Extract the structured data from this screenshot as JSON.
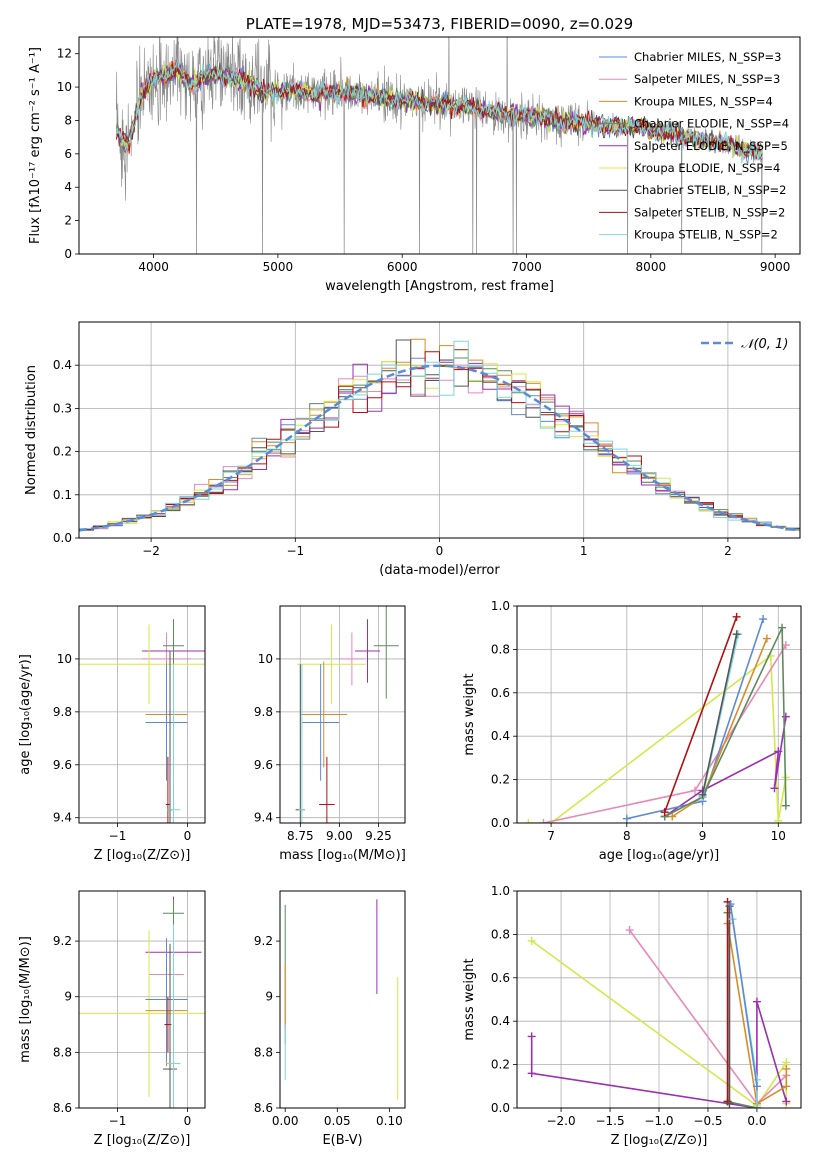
{
  "colors": {
    "chabrier_miles": "#5b8bd8",
    "salpeter_miles": "#e889b8",
    "kroupa_miles": "#d98c2a",
    "chabrier_elodie": "#5e8a5e",
    "salpeter_elodie": "#9b30b0",
    "kroupa_elodie": "#d4e84a",
    "chabrier_stelib": "#555555",
    "salpeter_stelib": "#b01010",
    "kroupa_stelib": "#7fd6dc",
    "grid": "#b0b0b0",
    "normal_curve": "#5b8bd8"
  },
  "chart_data": [
    {
      "id": "spectrum",
      "type": "line",
      "title": "PLATE=1978, MJD=53473, FIBERID=0090, z=0.029",
      "xlabel": "wavelength [Angstrom, rest frame]",
      "ylabel": "Flux [fλ10⁻¹⁷ erg cm⁻² s⁻¹ A⁻¹]",
      "xlim": [
        3400,
        9200
      ],
      "ylim": [
        0,
        13
      ],
      "xticks": [
        4000,
        5000,
        6000,
        7000,
        8000,
        9000
      ],
      "yticks": [
        0,
        2,
        4,
        6,
        8,
        10,
        12
      ],
      "legend_placement": "top-right",
      "legend": [
        {
          "label": "Chabrier MILES, N_SSP=3",
          "color": "#5b8bd8"
        },
        {
          "label": "Salpeter MILES, N_SSP=3",
          "color": "#e889b8"
        },
        {
          "label": "Kroupa MILES, N_SSP=4",
          "color": "#d98c2a"
        },
        {
          "label": "Chabrier ELODIE, N_SSP=4",
          "color": "#5e8a5e"
        },
        {
          "label": "Salpeter ELODIE, N_SSP=5",
          "color": "#9b30b0"
        },
        {
          "label": "Kroupa ELODIE, N_SSP=4",
          "color": "#d4e84a"
        },
        {
          "label": "Chabrier STELIB, N_SSP=2",
          "color": "#555555"
        },
        {
          "label": "Salpeter STELIB, N_SSP=2",
          "color": "#b01010"
        },
        {
          "label": "Kroupa STELIB, N_SSP=2",
          "color": "#7fd6dc"
        }
      ],
      "model_continuum": {
        "x": [
          3700,
          3800,
          3900,
          4000,
          4100,
          4200,
          4300,
          4400,
          4500,
          4700,
          4900,
          5100,
          5300,
          5500,
          5800,
          6100,
          6400,
          6700,
          7000,
          7300,
          7600,
          7900,
          8200,
          8500,
          8800,
          8900
        ],
        "y": [
          7.2,
          6.5,
          9.5,
          10.5,
          10.8,
          11.0,
          10.2,
          10.6,
          10.8,
          10.5,
          9.6,
          9.8,
          9.6,
          9.7,
          9.4,
          9.1,
          8.9,
          8.6,
          8.3,
          7.9,
          7.7,
          7.6,
          7.1,
          6.7,
          6.2,
          6.0
        ]
      },
      "data_spectrum_color": "#888888"
    },
    {
      "id": "residuals",
      "type": "line",
      "xlabel": "(data-model)/error",
      "ylabel": "Normed distribution",
      "xlim": [
        -2.5,
        2.5
      ],
      "ylim": [
        0,
        0.5
      ],
      "xticks": [
        -2,
        -1,
        0,
        1,
        2
      ],
      "yticks": [
        0.0,
        0.1,
        0.2,
        0.3,
        0.4
      ],
      "legend_placement": "top-right",
      "legend": [
        {
          "label": "𝒩(0, 1)",
          "color": "#5b8bd8",
          "style": "dashed"
        }
      ],
      "bin_width": 0.1,
      "series_color_keys": [
        "chabrier_miles",
        "salpeter_miles",
        "kroupa_miles",
        "chabrier_elodie",
        "salpeter_elodie",
        "kroupa_elodie",
        "chabrier_stelib",
        "salpeter_stelib",
        "kroupa_stelib"
      ]
    },
    {
      "id": "age_vs_Z",
      "type": "scatter",
      "xlabel": "Z [log₁₀(Z/Z⊙)]",
      "ylabel": "age  [log₁₀(age/yr)]",
      "xlim": [
        -1.55,
        0.25
      ],
      "ylim": [
        9.38,
        10.2
      ],
      "xticks": [
        -1,
        0
      ],
      "yticks": [
        9.4,
        9.6,
        9.8,
        10.0
      ],
      "points": [
        {
          "x": -0.3,
          "y": 10.0,
          "xerr": 0.35,
          "yerr": 0.1,
          "color": "#e889b8"
        },
        {
          "x": -0.2,
          "y": 10.03,
          "xerr": 0.45,
          "yerr": 0.12,
          "color": "#9b30b0"
        },
        {
          "x": -0.2,
          "y": 10.05,
          "xerr": 0.15,
          "yerr": 0.1,
          "color": "#5e8a5e"
        },
        {
          "x": -0.55,
          "y": 9.98,
          "xerr": 1.0,
          "yerr": 0.15,
          "color": "#d4e84a"
        },
        {
          "x": -0.3,
          "y": 9.79,
          "xerr": 0.3,
          "yerr": 0.2,
          "color": "#d98c2a"
        },
        {
          "x": -0.3,
          "y": 9.76,
          "xerr": 0.3,
          "yerr": 0.22,
          "color": "#5b8bd8"
        },
        {
          "x": -0.28,
          "y": 9.45,
          "xerr": 0.03,
          "yerr": 0.18,
          "color": "#b01010"
        },
        {
          "x": -0.25,
          "y": 9.43,
          "xerr": 0.03,
          "yerr": 0.6,
          "color": "#555555"
        },
        {
          "x": -0.2,
          "y": 9.43,
          "xerr": 0.1,
          "yerr": 0.55,
          "color": "#7fd6dc"
        }
      ]
    },
    {
      "id": "age_vs_mass",
      "type": "scatter",
      "xlabel": "mass [log₁₀(M/M⊙)]",
      "ylabel": "",
      "xlim": [
        8.62,
        9.42
      ],
      "ylim": [
        9.38,
        10.2
      ],
      "xticks": [
        8.75,
        9.0,
        9.25
      ],
      "xtick_labels": [
        "8.75",
        "9.00",
        "9.25"
      ],
      "yticks": [
        9.4,
        9.6,
        9.8,
        10.0
      ],
      "points": [
        {
          "x": 9.08,
          "y": 10.0,
          "xerr": 0.08,
          "yerr": 0.1,
          "color": "#e889b8"
        },
        {
          "x": 9.18,
          "y": 10.03,
          "xerr": 0.08,
          "yerr": 0.12,
          "color": "#9b30b0"
        },
        {
          "x": 9.3,
          "y": 10.05,
          "xerr": 0.08,
          "yerr": 0.2,
          "color": "#5e8a5e"
        },
        {
          "x": 8.95,
          "y": 9.98,
          "xerr": 0.22,
          "yerr": 0.15,
          "color": "#d4e84a"
        },
        {
          "x": 8.9,
          "y": 9.79,
          "xerr": 0.15,
          "yerr": 0.2,
          "color": "#d98c2a"
        },
        {
          "x": 8.88,
          "y": 9.76,
          "xerr": 0.12,
          "yerr": 0.22,
          "color": "#5b8bd8"
        },
        {
          "x": 8.92,
          "y": 9.45,
          "xerr": 0.05,
          "yerr": 0.18,
          "color": "#b01010"
        },
        {
          "x": 8.75,
          "y": 9.43,
          "xerr": 0.03,
          "yerr": 0.55,
          "color": "#555555"
        },
        {
          "x": 8.76,
          "y": 9.43,
          "xerr": 0.02,
          "yerr": 0.55,
          "color": "#7fd6dc"
        }
      ]
    },
    {
      "id": "massweight_vs_age",
      "type": "line",
      "xlabel": "age  [log₁₀(age/yr)]",
      "ylabel": "mass weight",
      "xlim": [
        6.55,
        10.3
      ],
      "ylim": [
        0,
        1
      ],
      "xticks": [
        7,
        8,
        9,
        10
      ],
      "yticks": [
        0.0,
        0.2,
        0.4,
        0.6,
        0.8,
        1.0
      ],
      "series": [
        {
          "color": "#d4e84a",
          "x": [
            6.7,
            7.0,
            9.9,
            10.0,
            10.1
          ],
          "y": [
            0.0,
            0.0,
            0.77,
            0.01,
            0.21
          ]
        },
        {
          "color": "#e889b8",
          "x": [
            6.9,
            8.9,
            10.1
          ],
          "y": [
            0.0,
            0.15,
            0.82
          ]
        },
        {
          "color": "#9b30b0",
          "x": [
            8.5,
            9.0,
            10.0,
            9.95,
            10.1
          ],
          "y": [
            0.03,
            0.15,
            0.33,
            0.16,
            0.49
          ]
        },
        {
          "color": "#5b8bd8",
          "x": [
            8.0,
            9.0,
            9.8
          ],
          "y": [
            0.02,
            0.1,
            0.94
          ]
        },
        {
          "color": "#d98c2a",
          "x": [
            8.6,
            9.0,
            9.85
          ],
          "y": [
            0.03,
            0.12,
            0.85
          ]
        },
        {
          "color": "#5e8a5e",
          "x": [
            8.5,
            9.0,
            10.05,
            10.1
          ],
          "y": [
            0.03,
            0.12,
            0.9,
            0.08
          ]
        },
        {
          "color": "#b01010",
          "x": [
            8.5,
            9.45
          ],
          "y": [
            0.05,
            0.95
          ]
        },
        {
          "color": "#7fd6dc",
          "x": [
            9.0,
            9.47
          ],
          "y": [
            0.12,
            0.87
          ]
        },
        {
          "color": "#555555",
          "x": [
            9.0,
            9.45
          ],
          "y": [
            0.13,
            0.87
          ]
        }
      ]
    },
    {
      "id": "mass_vs_Z",
      "type": "scatter",
      "xlabel": "Z [log₁₀(Z/Z⊙)]",
      "ylabel": "mass [log₁₀(M/M⊙)]",
      "xlim": [
        -1.55,
        0.25
      ],
      "ylim": [
        8.6,
        9.38
      ],
      "xticks": [
        -1,
        0
      ],
      "yticks": [
        8.6,
        8.8,
        9.0,
        9.2
      ],
      "points": [
        {
          "x": -0.3,
          "y": 9.08,
          "xerr": 0.25,
          "yerr": 0.1,
          "color": "#e889b8"
        },
        {
          "x": -0.2,
          "y": 9.16,
          "xerr": 0.4,
          "yerr": 0.2,
          "color": "#9b30b0"
        },
        {
          "x": -0.2,
          "y": 9.3,
          "xerr": 0.15,
          "yerr": 0.05,
          "color": "#5e8a5e"
        },
        {
          "x": -0.55,
          "y": 8.94,
          "xerr": 1.0,
          "yerr": 0.3,
          "color": "#d4e84a"
        },
        {
          "x": -0.3,
          "y": 8.95,
          "xerr": 0.3,
          "yerr": 0.2,
          "color": "#d98c2a"
        },
        {
          "x": -0.3,
          "y": 8.99,
          "xerr": 0.3,
          "yerr": 0.22,
          "color": "#5b8bd8"
        },
        {
          "x": -0.28,
          "y": 8.9,
          "xerr": 0.05,
          "yerr": 0.1,
          "color": "#b01010"
        },
        {
          "x": -0.25,
          "y": 8.74,
          "xerr": 0.1,
          "yerr": 0.45,
          "color": "#555555"
        },
        {
          "x": -0.2,
          "y": 8.76,
          "xerr": 0.1,
          "yerr": 0.5,
          "color": "#7fd6dc"
        }
      ]
    },
    {
      "id": "mass_vs_ebv",
      "type": "scatter",
      "xlabel": "E(B-V)",
      "ylabel": "",
      "xlim": [
        -0.005,
        0.115
      ],
      "ylim": [
        8.6,
        9.38
      ],
      "xticks": [
        0.0,
        0.05,
        0.1
      ],
      "xtick_labels": [
        "0.00",
        "0.05",
        "0.10"
      ],
      "yticks": [
        8.6,
        8.8,
        9.0,
        9.2
      ],
      "points": [
        {
          "x": 0.0,
          "y": 9.08,
          "xerr": 0,
          "yerr": 0.25,
          "color": "#5e8a5e"
        },
        {
          "x": 0.0,
          "y": 9.0,
          "xerr": 0,
          "yerr": 0.12,
          "color": "#d98c2a"
        },
        {
          "x": 0.0,
          "y": 8.8,
          "xerr": 0,
          "yerr": 0.1,
          "color": "#7fd6dc"
        },
        {
          "x": 0.088,
          "y": 9.18,
          "xerr": 0,
          "yerr": 0.17,
          "color": "#9b30b0"
        },
        {
          "x": 0.108,
          "y": 8.85,
          "xerr": 0,
          "yerr": 0.22,
          "color": "#d4e84a"
        }
      ]
    },
    {
      "id": "massweight_vs_Z",
      "type": "line",
      "xlabel": "Z [log₁₀(Z/Z⊙)]",
      "ylabel": "mass weight",
      "xlim": [
        -2.45,
        0.45
      ],
      "ylim": [
        0,
        1
      ],
      "xticks": [
        -2.0,
        -1.5,
        -1.0,
        -0.5,
        0.0
      ],
      "xtick_labels": [
        "−2.0",
        "−1.5",
        "−1.0",
        "−0.5",
        "0.0"
      ],
      "yticks": [
        0.0,
        0.2,
        0.4,
        0.6,
        0.8,
        1.0
      ],
      "series": [
        {
          "color": "#d4e84a",
          "x": [
            -2.3,
            0.0,
            0.3,
            0.3
          ],
          "y": [
            0.77,
            0.01,
            0.21,
            0.02
          ]
        },
        {
          "color": "#e889b8",
          "x": [
            -1.3,
            0.0,
            0.3
          ],
          "y": [
            0.82,
            0.02,
            0.15
          ]
        },
        {
          "color": "#9b30b0",
          "x": [
            -2.3,
            -2.3,
            0.0,
            0.0,
            0.3
          ],
          "y": [
            0.33,
            0.16,
            0.0,
            0.49,
            0.03
          ]
        },
        {
          "color": "#d98c2a",
          "x": [
            -0.3,
            0.0,
            0.3,
            0.3
          ],
          "y": [
            0.85,
            0.02,
            0.1,
            0.18
          ]
        },
        {
          "color": "#5e8a5e",
          "x": [
            -0.3,
            -0.3,
            0.0
          ],
          "y": [
            0.9,
            0.03,
            0.0
          ]
        },
        {
          "color": "#b01010",
          "x": [
            -0.3,
            -0.3
          ],
          "y": [
            0.95,
            0.03
          ]
        },
        {
          "color": "#555555",
          "x": [
            -0.28,
            -0.28
          ],
          "y": [
            0.93,
            0.02
          ]
        },
        {
          "color": "#7fd6dc",
          "x": [
            -0.25,
            0.0,
            0.0
          ],
          "y": [
            0.87,
            0.13,
            0.0
          ]
        },
        {
          "color": "#5b8bd8",
          "x": [
            -0.27,
            0.0
          ],
          "y": [
            0.94,
            0.1
          ]
        }
      ]
    }
  ]
}
